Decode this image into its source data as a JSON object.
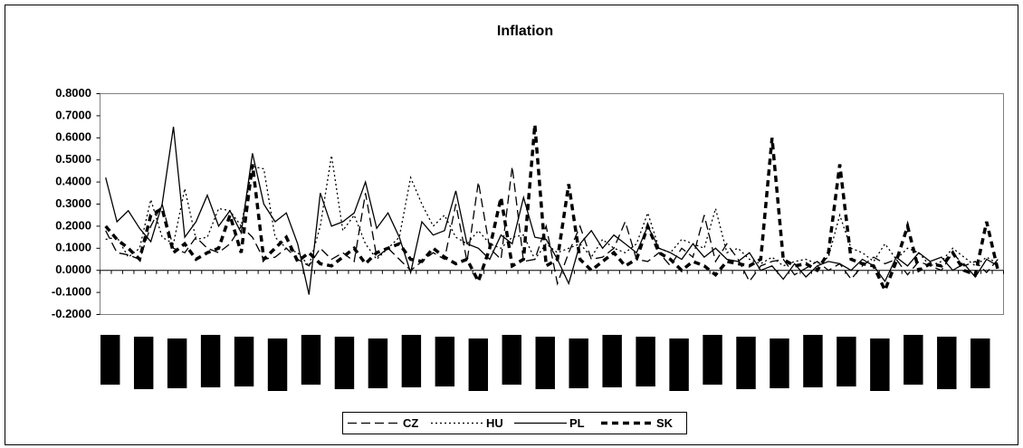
{
  "chart_data": {
    "type": "line",
    "title": "Inflation",
    "categories": [
      null,
      null,
      null,
      null,
      null,
      null,
      null,
      null,
      null,
      null,
      null,
      null,
      null,
      null,
      null,
      null,
      null,
      null,
      null,
      null,
      null,
      null,
      null,
      null,
      null,
      null,
      null,
      null,
      null,
      null,
      null,
      null,
      null,
      null,
      null,
      null,
      null,
      null,
      null,
      null,
      null,
      null,
      null,
      null,
      null,
      null,
      null,
      null,
      null,
      null,
      null,
      null,
      null,
      null,
      null,
      null,
      null,
      null,
      null,
      null,
      null,
      null,
      null,
      null,
      null,
      null,
      null,
      null,
      null,
      null,
      null,
      null,
      null,
      null,
      null,
      null,
      null,
      null,
      null,
      null
    ],
    "series": [
      {
        "name": "CZ",
        "color": "#000000",
        "line_style": "long-dash",
        "values": [
          0.18,
          0.08,
          0.07,
          0.05,
          0.2,
          0.3,
          0.1,
          0.08,
          0.15,
          0.1,
          0.08,
          0.12,
          0.2,
          0.15,
          0.05,
          0.06,
          0.1,
          0.05,
          0.02,
          0.1,
          0.05,
          0.08,
          0.04,
          0.35,
          0.06,
          0.1,
          0.05,
          0.0,
          0.04,
          0.08,
          0.05,
          0.3,
          0.04,
          0.4,
          0.1,
          0.05,
          0.47,
          0.04,
          0.05,
          0.2,
          -0.06,
          0.08,
          0.2,
          0.05,
          0.06,
          0.1,
          0.22,
          0.05,
          0.04,
          0.08,
          0.02,
          0.1,
          0.06,
          0.25,
          0.04,
          0.12,
          0.05,
          -0.05,
          0.02,
          0.04,
          0.05,
          -0.02,
          0.01,
          0.04,
          0.0,
          0.03,
          -0.04,
          0.02,
          0.06,
          0.03,
          0.05,
          -0.02,
          0.04,
          0.02,
          0.0,
          0.08,
          0.02,
          0.04,
          -0.01,
          0.05
        ]
      },
      {
        "name": "HU",
        "color": "#000000",
        "line_style": "dot",
        "values": [
          0.14,
          0.15,
          0.06,
          0.1,
          0.32,
          0.15,
          0.12,
          0.37,
          0.14,
          0.15,
          0.28,
          0.27,
          0.2,
          0.47,
          0.46,
          0.15,
          0.1,
          0.08,
          0.02,
          0.2,
          0.52,
          0.18,
          0.25,
          0.12,
          0.05,
          0.1,
          0.15,
          0.42,
          0.3,
          0.2,
          0.25,
          0.15,
          0.12,
          0.18,
          0.12,
          0.1,
          0.15,
          0.16,
          0.05,
          0.12,
          0.08,
          0.1,
          0.12,
          0.06,
          0.14,
          0.1,
          0.08,
          0.12,
          0.26,
          0.1,
          0.08,
          0.14,
          0.12,
          0.1,
          0.28,
          0.08,
          0.1,
          0.05,
          0.03,
          0.06,
          0.02,
          0.04,
          0.05,
          0.03,
          0.06,
          0.25,
          0.1,
          0.08,
          0.04,
          0.12,
          0.05,
          0.1,
          0.08,
          0.02,
          0.04,
          0.1,
          0.06,
          0.02,
          0.06,
          0.03
        ]
      },
      {
        "name": "PL",
        "color": "#000000",
        "line_style": "solid",
        "values": [
          0.42,
          0.22,
          0.27,
          0.19,
          0.13,
          0.3,
          0.65,
          0.15,
          0.22,
          0.34,
          0.2,
          0.27,
          0.17,
          0.53,
          0.3,
          0.22,
          0.26,
          0.12,
          -0.11,
          0.35,
          0.2,
          0.22,
          0.26,
          0.4,
          0.19,
          0.26,
          0.15,
          -0.01,
          0.22,
          0.16,
          0.18,
          0.36,
          0.12,
          0.1,
          0.05,
          0.16,
          0.12,
          0.33,
          0.15,
          0.14,
          0.05,
          -0.06,
          0.12,
          0.18,
          0.1,
          0.16,
          0.12,
          0.08,
          0.2,
          0.1,
          0.08,
          0.05,
          0.12,
          0.06,
          0.1,
          0.05,
          0.04,
          0.08,
          0.0,
          0.02,
          -0.04,
          0.03,
          -0.03,
          0.02,
          0.04,
          0.03,
          0.0,
          0.05,
          0.02,
          -0.05,
          0.06,
          0.02,
          0.08,
          0.04,
          0.06,
          0.0,
          0.03,
          -0.03,
          0.05,
          0.02
        ]
      },
      {
        "name": "SK",
        "color": "#000000",
        "line_style": "heavy-dash",
        "values": [
          0.2,
          0.14,
          0.1,
          0.05,
          0.25,
          0.28,
          0.08,
          0.12,
          0.05,
          0.08,
          0.1,
          0.25,
          0.08,
          0.48,
          0.05,
          0.1,
          0.15,
          0.04,
          0.08,
          0.03,
          0.02,
          0.06,
          0.1,
          0.03,
          0.08,
          0.1,
          0.12,
          0.05,
          0.04,
          0.1,
          0.06,
          0.03,
          0.05,
          -0.05,
          0.1,
          0.33,
          0.02,
          0.05,
          0.66,
          0.02,
          0.05,
          0.39,
          0.05,
          0.0,
          0.04,
          0.08,
          0.02,
          0.05,
          0.2,
          0.08,
          0.05,
          0.0,
          0.04,
          0.02,
          -0.02,
          0.04,
          0.03,
          0.02,
          0.05,
          0.6,
          0.05,
          0.02,
          0.03,
          0.0,
          0.08,
          0.48,
          0.05,
          0.03,
          0.02,
          -0.09,
          0.04,
          0.2,
          0.0,
          0.03,
          0.02,
          0.08,
          0.0,
          -0.02,
          0.22,
          0.0
        ]
      }
    ],
    "ylim": [
      -0.2,
      0.8
    ],
    "yticks": [
      {
        "value": -0.2,
        "label": "-0.2000"
      },
      {
        "value": -0.1,
        "label": "-0.1000"
      },
      {
        "value": 0,
        "label": "0.0000"
      },
      {
        "value": 0.1,
        "label": "0.1000"
      },
      {
        "value": 0.2,
        "label": "0.2000"
      },
      {
        "value": 0.3,
        "label": "0.3000"
      },
      {
        "value": 0.4,
        "label": "0.4000"
      },
      {
        "value": 0.5,
        "label": "0.5000"
      },
      {
        "value": 0.6,
        "label": "0.6000"
      },
      {
        "value": 0.7,
        "label": "0.7000"
      },
      {
        "value": 0.8,
        "label": "0.8000"
      }
    ],
    "grid": false,
    "legend": "bottom"
  }
}
